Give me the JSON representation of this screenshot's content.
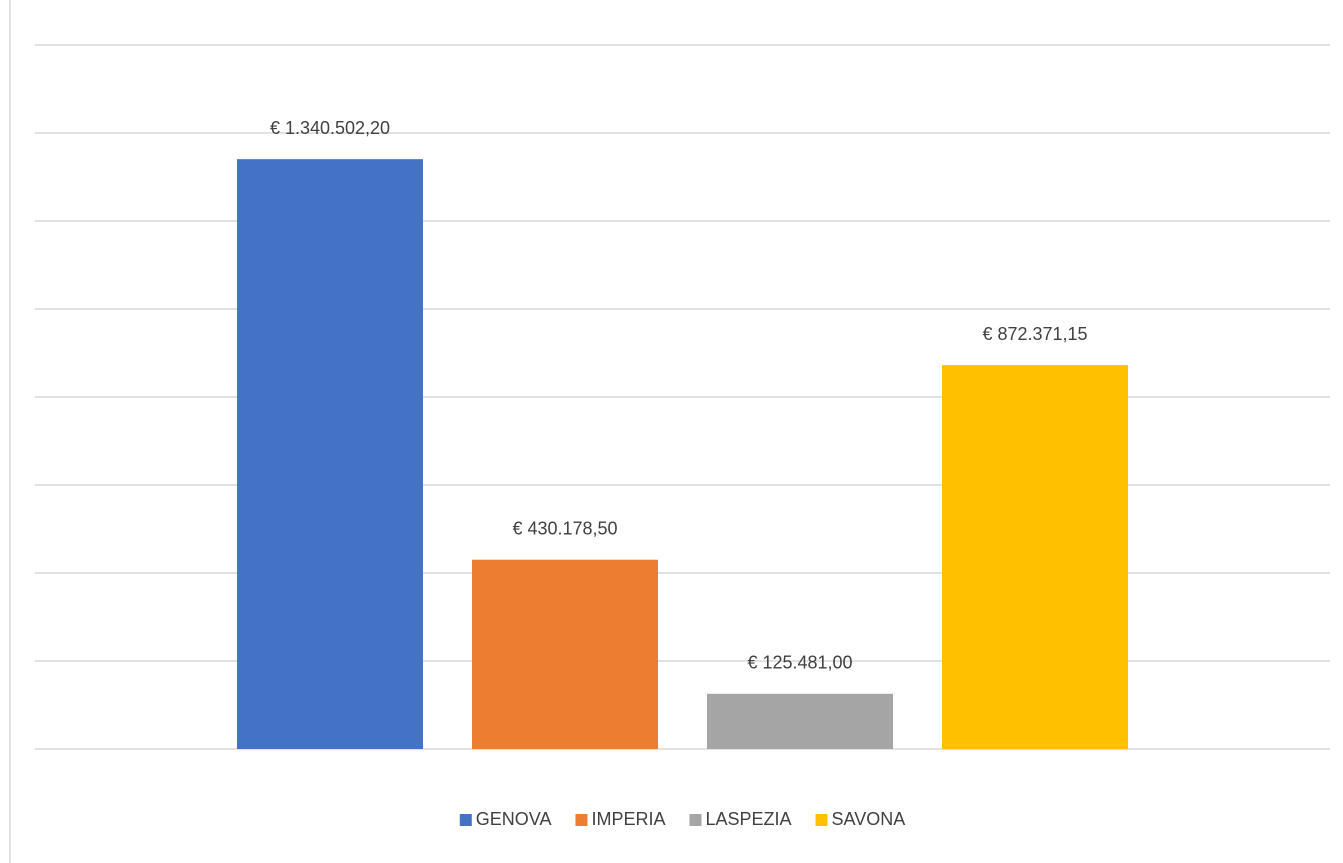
{
  "chart_data": {
    "type": "bar",
    "series": [
      {
        "name": "GENOVA",
        "color": "#4472c4",
        "values": [
          1340502.2
        ],
        "value_labels": [
          "€ 1.340.502,20"
        ]
      },
      {
        "name": "IMPERIA",
        "color": "#ed7d31",
        "values": [
          430178.5
        ],
        "value_labels": [
          "€ 430.178,50"
        ]
      },
      {
        "name": "LASPEZIA",
        "color": "#a5a5a5",
        "values": [
          125481
        ],
        "value_labels": [
          "€ 125.481,00"
        ]
      },
      {
        "name": "SAVONA",
        "color": "#ffc000",
        "values": [
          872371.15
        ],
        "value_labels": [
          "€ 872.371,15"
        ]
      }
    ],
    "ylim": [
      0,
      1600000
    ],
    "yticks": [
      0,
      200000,
      400000,
      600000,
      800000,
      1000000,
      1200000,
      1400000,
      1600000
    ],
    "grid": true,
    "legend": "bottom"
  }
}
